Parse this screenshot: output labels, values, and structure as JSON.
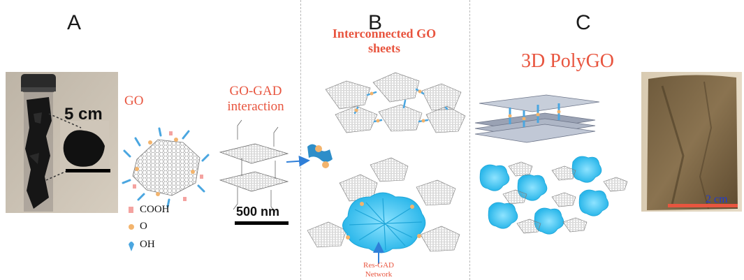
{
  "panels": {
    "a": {
      "letter": "A"
    },
    "b": {
      "letter": "B"
    },
    "c": {
      "letter": "C"
    }
  },
  "labels": {
    "go": "GO",
    "interaction_line1": "GO-GAD",
    "interaction_line2": "interaction",
    "interconnected_line1": "Interconnected GO",
    "interconnected_line2": "sheets",
    "polygo": "3D PolyGO",
    "network_line1": "Res-GAD",
    "network_line2": "Network"
  },
  "scale_bars": {
    "photo_a": "5 cm",
    "interaction": "500 nm",
    "photo_c": "2 cm"
  },
  "legend": [
    {
      "label": "COOH",
      "icon": "cooh-marker-icon",
      "color": "#f4a3a0"
    },
    {
      "label": "O",
      "icon": "o-marker-icon",
      "color": "#f3b46d"
    },
    {
      "label": "OH",
      "icon": "oh-marker-icon",
      "color": "#4aa6e0"
    }
  ],
  "colors": {
    "label_red": "#e8553f",
    "network_blue": "#39c3ef",
    "arrow_blue": "#2f7fd8"
  }
}
